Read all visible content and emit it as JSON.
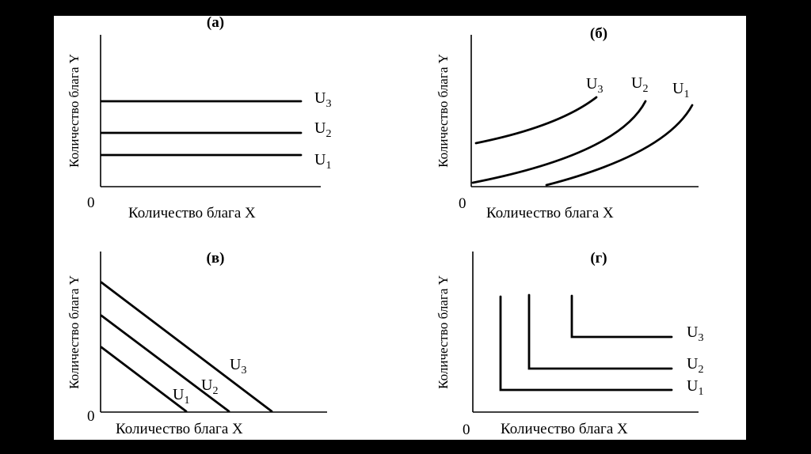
{
  "colors": {
    "background": "#000000",
    "canvas": "#ffffff",
    "ink": "#000000"
  },
  "panels": [
    {
      "id": "a",
      "label": "(а)",
      "x_axis_label": "Количество блага X",
      "y_axis_label": "Количество блага Y",
      "origin_label": "0",
      "curves": [
        {
          "name": "U",
          "sub": "3"
        },
        {
          "name": "U",
          "sub": "2"
        },
        {
          "name": "U",
          "sub": "1"
        }
      ]
    },
    {
      "id": "b",
      "label": "(б)",
      "x_axis_label": "Количество блага X",
      "y_axis_label": "Количество блага Y",
      "origin_label": "0",
      "curves": [
        {
          "name": "U",
          "sub": "3"
        },
        {
          "name": "U",
          "sub": "2"
        },
        {
          "name": "U",
          "sub": "1"
        }
      ]
    },
    {
      "id": "v",
      "label": "(в)",
      "x_axis_label": "Количество блага X",
      "y_axis_label": "Количество блага Y",
      "origin_label": "0",
      "curves": [
        {
          "name": "U",
          "sub": "3"
        },
        {
          "name": "U",
          "sub": "2"
        },
        {
          "name": "U",
          "sub": "1"
        }
      ]
    },
    {
      "id": "g",
      "label": "(г)",
      "x_axis_label": "Количество блага X",
      "y_axis_label": "Количество блага Y",
      "origin_label": "0",
      "curves": [
        {
          "name": "U",
          "sub": "3"
        },
        {
          "name": "U",
          "sub": "2"
        },
        {
          "name": "U",
          "sub": "1"
        }
      ]
    }
  ]
}
